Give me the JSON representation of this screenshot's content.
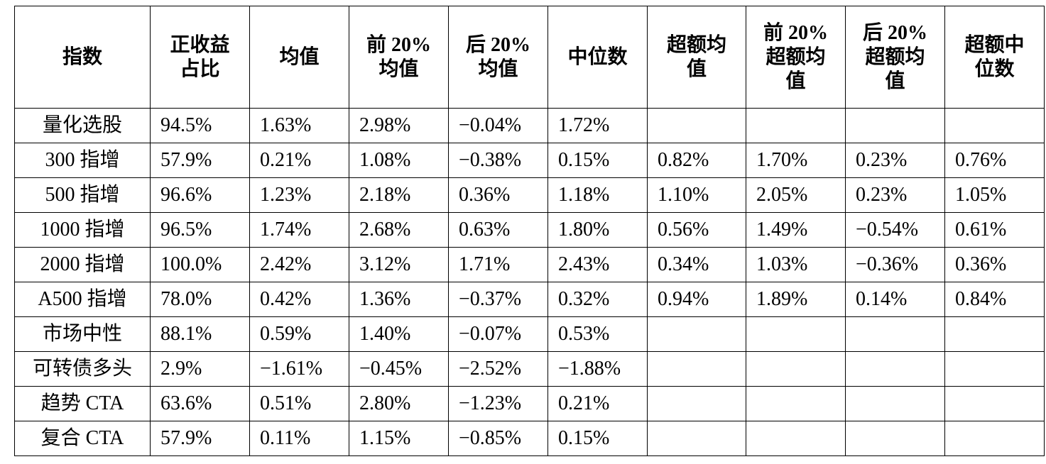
{
  "table": {
    "header": [
      [
        "指数"
      ],
      [
        "正收益",
        "占比"
      ],
      [
        "均值"
      ],
      [
        "前 20%",
        "均值"
      ],
      [
        "后 20%",
        "均值"
      ],
      [
        "中位数"
      ],
      [
        "超额均",
        "值"
      ],
      [
        "前 20%",
        "超额均",
        "值"
      ],
      [
        "后 20%",
        "超额均",
        "值"
      ],
      [
        "超额中",
        "位数"
      ]
    ],
    "rows": [
      [
        "量化选股",
        "94.5%",
        "1.63%",
        "2.98%",
        "−0.04%",
        "1.72%"
      ],
      [
        "300 指增",
        "57.9%",
        "0.21%",
        "1.08%",
        "−0.38%",
        "0.15%",
        "0.82%",
        "1.70%",
        "0.23%",
        "0.76%"
      ],
      [
        "500 指增",
        "96.6%",
        "1.23%",
        "2.18%",
        "0.36%",
        "1.18%",
        "1.10%",
        "2.05%",
        "0.23%",
        "1.05%"
      ],
      [
        "1000 指增",
        "96.5%",
        "1.74%",
        "2.68%",
        "0.63%",
        "1.80%",
        "0.56%",
        "1.49%",
        "−0.54%",
        "0.61%"
      ],
      [
        "2000 指增",
        "100.0%",
        "2.42%",
        "3.12%",
        "1.71%",
        "2.43%",
        "0.34%",
        "1.03%",
        "−0.36%",
        "0.36%"
      ],
      [
        "A500 指增",
        "78.0%",
        "0.42%",
        "1.36%",
        "−0.37%",
        "0.32%",
        "0.94%",
        "1.89%",
        "0.14%",
        "0.84%"
      ],
      [
        "市场中性",
        "88.1%",
        "0.59%",
        "1.40%",
        "−0.07%",
        "0.53%"
      ],
      [
        "可转债多头",
        "2.9%",
        "−1.61%",
        "−0.45%",
        "−2.52%",
        "−1.88%"
      ],
      [
        "趋势 CTA",
        "63.6%",
        "0.51%",
        "2.80%",
        "−1.23%",
        "0.21%"
      ],
      [
        "复合 CTA",
        "57.9%",
        "0.11%",
        "1.15%",
        "−0.85%",
        "0.15%"
      ]
    ]
  }
}
